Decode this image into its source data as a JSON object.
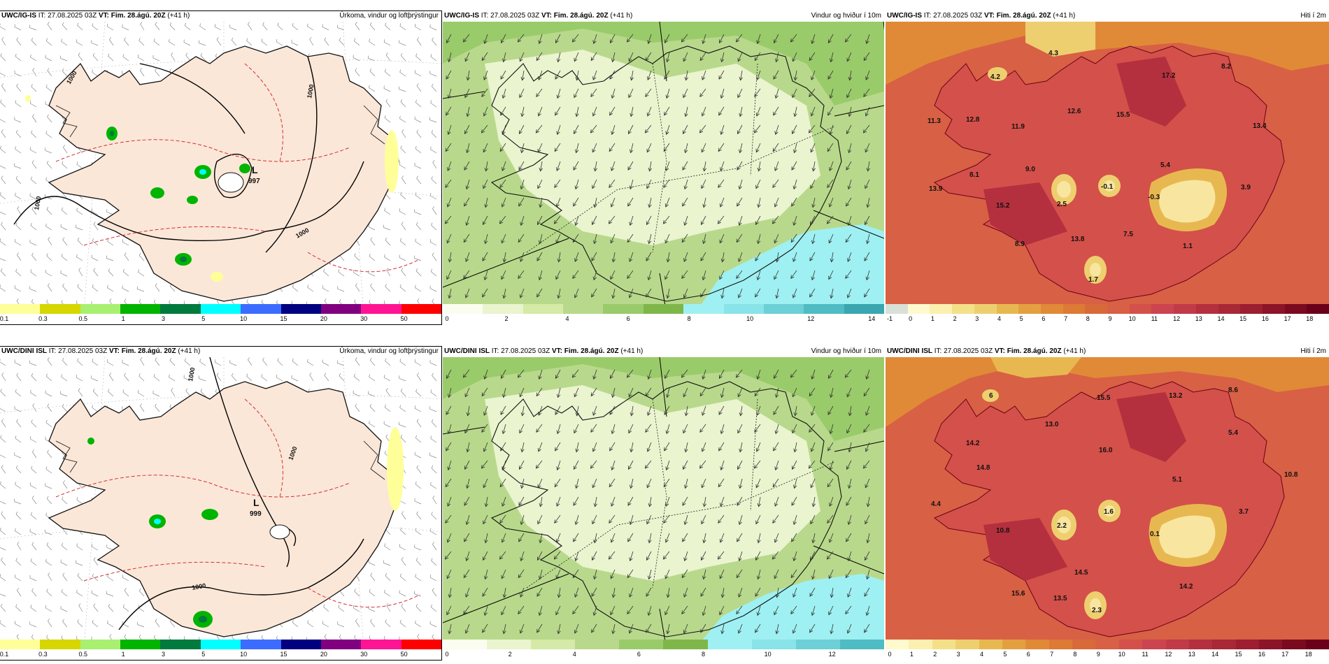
{
  "colors": {
    "land_precip": "#fbe7d8",
    "wind_light": "#eaf4cf",
    "wind_mid": "#b8d98b",
    "wind_dark": "#7fb64a",
    "wind_cyan": "#9ff0f2",
    "temp_light": "#f8e6a0",
    "temp_orange": "#e08a38",
    "temp_red": "#d4504a",
    "temp_dark": "#a3262e"
  },
  "rows": [
    {
      "model": "UWC/IG-IS",
      "it": "IT: 27.08.2025 03Z",
      "vt": "VT: Fim. 28.ágú. 20Z",
      "lead": "(+41 h)",
      "low": {
        "letter": "L",
        "value": "997"
      },
      "isobar_labels": [
        "1000",
        "1000",
        "1000",
        "1000"
      ],
      "temp_labels": [
        "4.3",
        "4.2",
        "8.2",
        "17.2",
        "11.3",
        "12.8",
        "11.9",
        "12.6",
        "15.5",
        "13.4",
        "9.0",
        "5.4",
        "13.9",
        "8.1",
        "-0.1",
        "3.9",
        "15.2",
        "2.5",
        "-0.3",
        "8.9",
        "13.8",
        "7.5",
        "1.1",
        "1.7"
      ],
      "temp_ticks": [
        "-1",
        "0",
        "1",
        "2",
        "3",
        "4",
        "5",
        "6",
        "7",
        "8",
        "9",
        "10",
        "11",
        "12",
        "13",
        "14",
        "15",
        "16",
        "17",
        "18"
      ],
      "wind_ticks": [
        "0",
        "2",
        "4",
        "6",
        "8",
        "10",
        "12",
        "14"
      ]
    },
    {
      "model": "UWC/DINI ISL",
      "it": "IT: 27.08.2025 03Z",
      "vt": "VT: Fim. 28.ágú. 20Z",
      "lead": "(+41 h)",
      "low": {
        "letter": "L",
        "value": "999"
      },
      "isobar_labels": [
        "1000",
        "1000",
        "1000"
      ],
      "temp_labels": [
        "6",
        "15.5",
        "13.2",
        "8.6",
        "13.0",
        "14.2",
        "16.0",
        "5.4",
        "14.8",
        "5.1",
        "10.8",
        "4.4",
        "1.6",
        "2.2",
        "3.7",
        "10.8",
        "0.1",
        "14.5",
        "14.2",
        "15.6",
        "13.5",
        "2.3"
      ],
      "temp_ticks": [
        "0",
        "1",
        "2",
        "3",
        "4",
        "5",
        "6",
        "7",
        "8",
        "9",
        "10",
        "11",
        "12",
        "13",
        "14",
        "15",
        "16",
        "17",
        "18"
      ],
      "wind_ticks": [
        "0",
        "2",
        "4",
        "6",
        "8",
        "10",
        "12"
      ]
    }
  ],
  "titles": {
    "precip": "Úrkoma, vindur og loftþrýstingur",
    "wind": "Vindur og hviður í 10m",
    "temp": "Hiti í 2m"
  },
  "precip_ticks": [
    "0.1",
    "0.3",
    "0.5",
    "1",
    "3",
    "5",
    "10",
    "15",
    "20",
    "30",
    "50"
  ],
  "precip_colors": [
    "#ffff99",
    "#d6d600",
    "#a8f070",
    "#00b400",
    "#007a3d",
    "#00ffff",
    "#3c6cff",
    "#000080",
    "#800080",
    "#ff1493",
    "#ff0000"
  ],
  "wind_colors_r1": [
    "#fafdf0",
    "#eaf4cf",
    "#d4eaa6",
    "#b8d98b",
    "#9acb6a",
    "#7fb64a",
    "#9ff0f2",
    "#88e4e8",
    "#6cd0d6",
    "#4fbcc4",
    "#3aa6b0"
  ],
  "wind_colors_r2": [
    "#fafdf0",
    "#eaf4cf",
    "#d4eaa6",
    "#b8d98b",
    "#9acb6a",
    "#7fb64a",
    "#9ff0f2",
    "#88e4e8",
    "#6cd0d6",
    "#4fbcc4"
  ],
  "temp_colors_r1": [
    "#d8e0d8",
    "#fffacd",
    "#fbf0b0",
    "#f5e08a",
    "#eecf70",
    "#e8b850",
    "#e4a040",
    "#e08a38",
    "#dc7a36",
    "#d86a3a",
    "#d86044",
    "#d4504a",
    "#cc4450",
    "#c03a48",
    "#b4303e",
    "#a82836",
    "#9c1e30",
    "#8c1428",
    "#7a0a20",
    "#6a001a"
  ],
  "temp_colors_r2": [
    "#fffacd",
    "#fbf0b0",
    "#f5e08a",
    "#eecf70",
    "#e8b850",
    "#e4a040",
    "#e08a38",
    "#dc7a36",
    "#d86a3a",
    "#d86044",
    "#d4504a",
    "#cc4450",
    "#c03a48",
    "#b4303e",
    "#a82836",
    "#9c1e30",
    "#8c1428",
    "#7a0a20",
    "#6a001a"
  ]
}
